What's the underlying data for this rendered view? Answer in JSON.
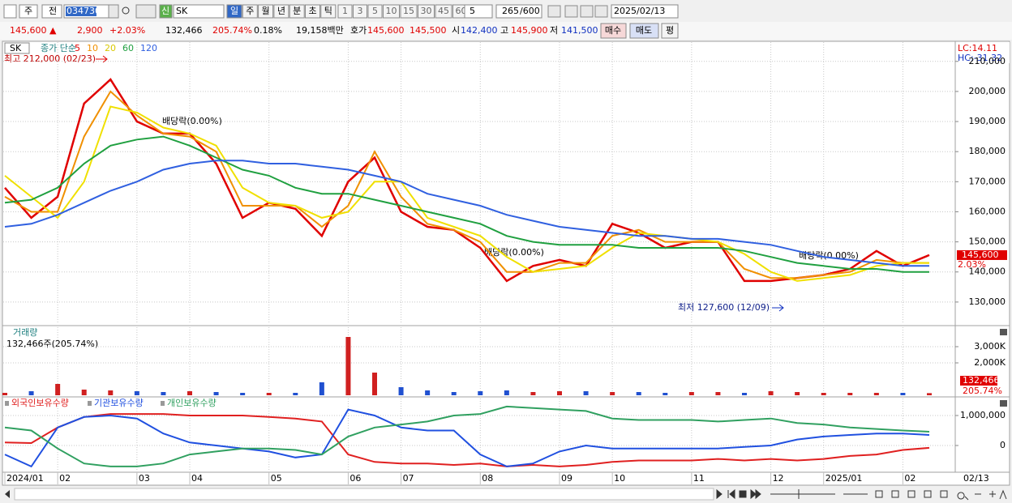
{
  "toolbar": {
    "period": "주",
    "scope": "전",
    "code": "034730",
    "new_badge": "신",
    "name": "SK",
    "intervals": [
      "일",
      "주",
      "월",
      "년",
      "분",
      "초",
      "틱"
    ],
    "minutes": [
      "1",
      "3",
      "5",
      "10",
      "15",
      "30",
      "45",
      "60"
    ],
    "unit": "5",
    "count": "265",
    "count_max": "/600",
    "date": "2025/02/13"
  },
  "quote": {
    "price": "145,600 ▲",
    "change": "2,900",
    "change_rate": "+2.03%",
    "volume": "132,466",
    "volume_ratio": "205.74%",
    "turnover": "0.18%",
    "amount": "19,158백만",
    "ask_bid_label": "호가",
    "ask": "145,600",
    "bid": "145,500",
    "open_label": "시",
    "open": "142,400",
    "high_label": "고",
    "high": "145,900",
    "low_label": "저",
    "low": "141,500",
    "buy": "매수",
    "sell": "매도",
    "avg": "평"
  },
  "chart_data": [
    {
      "type": "line",
      "symbol": "SK",
      "title": "종가 단순",
      "categories": [
        "2024/01",
        null,
        "02",
        null,
        null,
        "03",
        null,
        "04",
        null,
        null,
        "05",
        null,
        null,
        "06",
        null,
        "07",
        null,
        null,
        "08",
        null,
        null,
        "09",
        null,
        "10",
        null,
        null,
        "11",
        null,
        null,
        "12",
        null,
        "2025/01",
        null,
        null,
        "02",
        null
      ],
      "x_end_label": "02/13",
      "series": [
        {
          "name": "5",
          "color": "#e00000",
          "values": [
            168000,
            158000,
            165000,
            196000,
            204000,
            190000,
            186000,
            186000,
            176000,
            158000,
            163000,
            161000,
            152000,
            170000,
            178000,
            160000,
            155000,
            154000,
            148000,
            137000,
            142000,
            144000,
            142000,
            156000,
            153000,
            148000,
            150000,
            150000,
            137000,
            137000,
            138000,
            139000,
            141000,
            147000,
            142000,
            145600
          ]
        },
        {
          "name": "10",
          "color": "#f09000",
          "values": [
            165000,
            160000,
            160000,
            185000,
            200000,
            192000,
            186000,
            185000,
            180000,
            162000,
            162000,
            162000,
            155000,
            162000,
            180000,
            165000,
            156000,
            154000,
            150000,
            140000,
            140000,
            143000,
            143000,
            152000,
            154000,
            150000,
            150000,
            150000,
            141000,
            138000,
            138000,
            139000,
            140000,
            144000,
            143000,
            143000
          ]
        },
        {
          "name": "20",
          "color": "#f0e000",
          "values": [
            172000,
            165000,
            158000,
            170000,
            195000,
            193000,
            188000,
            186000,
            182000,
            168000,
            163000,
            162000,
            158000,
            160000,
            170000,
            170000,
            158000,
            155000,
            152000,
            145000,
            140000,
            141000,
            142000,
            148000,
            153000,
            152000,
            151000,
            150000,
            146000,
            140000,
            137000,
            138000,
            139000,
            142000,
            143000,
            143000
          ]
        },
        {
          "name": "60",
          "color": "#20a040",
          "values": [
            163000,
            164000,
            168000,
            176000,
            182000,
            184000,
            185000,
            182000,
            178000,
            174000,
            172000,
            168000,
            166000,
            166000,
            164000,
            162000,
            160000,
            158000,
            156000,
            152000,
            150000,
            149000,
            149000,
            149000,
            148000,
            148000,
            148000,
            148000,
            147000,
            145000,
            143000,
            142000,
            141000,
            141000,
            140000,
            140000
          ]
        },
        {
          "name": "120",
          "color": "#3060e0",
          "values": [
            155000,
            156000,
            159000,
            163000,
            167000,
            170000,
            174000,
            176000,
            177000,
            177000,
            176000,
            176000,
            175000,
            174000,
            172000,
            170000,
            166000,
            164000,
            162000,
            159000,
            157000,
            155000,
            154000,
            153000,
            152000,
            152000,
            151000,
            151000,
            150000,
            149000,
            147000,
            145000,
            144000,
            143000,
            142000,
            142000
          ]
        }
      ],
      "ylim": [
        122700,
        216400
      ],
      "yticks": [
        {
          "value": 130000,
          "label": "130,000"
        },
        {
          "value": 140000,
          "label": "140,000"
        },
        {
          "value": 150000,
          "label": "150,000"
        },
        {
          "value": 160000,
          "label": "160,000"
        },
        {
          "value": 170000,
          "label": "170,000"
        },
        {
          "value": 180000,
          "label": "180,000"
        },
        {
          "value": 190000,
          "label": "190,000"
        },
        {
          "value": 200000,
          "label": "200,000"
        },
        {
          "value": 210000,
          "label": "210,000"
        }
      ],
      "grid": true,
      "annotations": {
        "high": "최고 212,000 (02/23)",
        "low": "최저 127,600 (12/09)",
        "ex_dividend": [
          "배당락(0.00%)",
          "배당락(0.00%)",
          "배당락(0.00%)"
        ],
        "lc": "LC:14.11",
        "hc": "HC:-31.32"
      },
      "price_tag": {
        "value": 145600,
        "label": "145,600"
      },
      "change_tag": "2.03%"
    },
    {
      "type": "bar",
      "title": "거래량",
      "subtitle": "132,466주(205.74%)",
      "values": [
        150000,
        250000,
        700000,
        350000,
        300000,
        250000,
        200000,
        250000,
        200000,
        150000,
        150000,
        150000,
        800000,
        3600000,
        1400000,
        500000,
        300000,
        200000,
        250000,
        300000,
        200000,
        250000,
        250000,
        200000,
        200000,
        150000,
        200000,
        200000,
        150000,
        250000,
        200000,
        150000,
        150000,
        150000,
        150000,
        132466
      ],
      "up_color": "#d02020",
      "down_color": "#2050d0",
      "ylim": [
        0,
        4200000
      ],
      "yticks": [
        {
          "value": 2000000,
          "label": "2,000K"
        },
        {
          "value": 3000000,
          "label": "3,000K"
        }
      ],
      "grid": true,
      "last_tag": {
        "value": 132466,
        "label": "132,466"
      },
      "ratio_tag": "205.74%"
    },
    {
      "type": "line",
      "series": [
        {
          "name": "외국인보유수량",
          "color": "#e02020",
          "values": [
            100000,
            80000,
            600000,
            950000,
            1050000,
            1050000,
            1050000,
            1000000,
            1000000,
            1000000,
            950000,
            900000,
            800000,
            -300000,
            -550000,
            -600000,
            -600000,
            -650000,
            -600000,
            -700000,
            -650000,
            -700000,
            -650000,
            -550000,
            -500000,
            -500000,
            -500000,
            -450000,
            -500000,
            -450000,
            -500000,
            -450000,
            -350000,
            -300000,
            -150000,
            -80000
          ]
        },
        {
          "name": "기관보유수량",
          "color": "#2050e0",
          "values": [
            -300000,
            -700000,
            600000,
            950000,
            1000000,
            900000,
            400000,
            100000,
            0,
            -100000,
            -200000,
            -400000,
            -300000,
            1200000,
            1000000,
            600000,
            500000,
            500000,
            -300000,
            -700000,
            -600000,
            -200000,
            0,
            -100000,
            -100000,
            -100000,
            -100000,
            -100000,
            -50000,
            0,
            200000,
            300000,
            350000,
            400000,
            400000,
            350000
          ]
        },
        {
          "name": "개인보유수량",
          "color": "#30a060",
          "values": [
            600000,
            500000,
            -100000,
            -600000,
            -700000,
            -700000,
            -600000,
            -300000,
            -200000,
            -100000,
            -100000,
            -150000,
            -300000,
            300000,
            600000,
            700000,
            800000,
            1000000,
            1050000,
            1300000,
            1250000,
            1200000,
            1150000,
            900000,
            850000,
            850000,
            850000,
            800000,
            850000,
            900000,
            750000,
            700000,
            600000,
            550000,
            500000,
            460000
          ]
        }
      ],
      "ylim": [
        -865000,
        1567000
      ],
      "yticks": [
        0,
        {
          "value": 1000000,
          "label": "1,000,000"
        }
      ],
      "grid": true
    }
  ]
}
